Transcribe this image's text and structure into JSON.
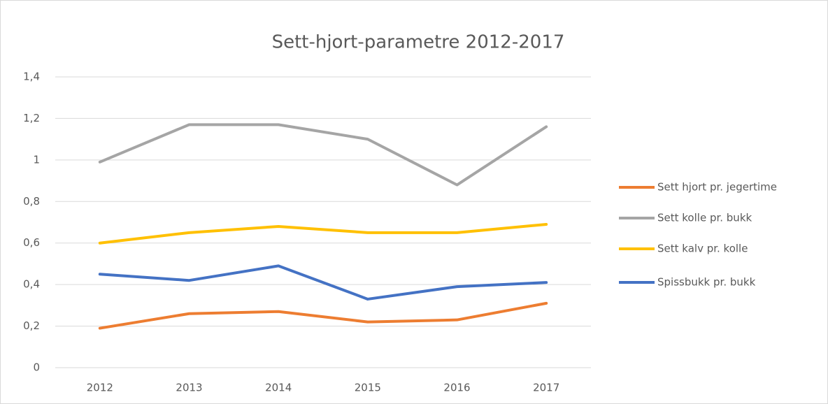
{
  "chart_data": {
    "type": "line",
    "title": "Sett-hjort-parametre 2012-2017",
    "categories": [
      "2012",
      "2013",
      "2014",
      "2015",
      "2016",
      "2017"
    ],
    "series": [
      {
        "name": "Sett hjort pr. jegertime",
        "color": "#ed7d31",
        "values": [
          0.19,
          0.26,
          0.27,
          0.22,
          0.23,
          0.31
        ]
      },
      {
        "name": "Sett kolle pr. bukk",
        "color": "#a5a5a5",
        "values": [
          0.99,
          1.17,
          1.17,
          1.1,
          0.88,
          1.16
        ]
      },
      {
        "name": "Sett kalv pr. kolle",
        "color": "#ffc000",
        "values": [
          0.6,
          0.65,
          0.68,
          0.65,
          0.65,
          0.69
        ]
      },
      {
        "name": "Spissbukk pr. bukk",
        "color": "#4472c4",
        "values": [
          0.45,
          0.42,
          0.49,
          0.33,
          0.39,
          0.41
        ]
      }
    ],
    "ylim": [
      0,
      1.4
    ],
    "yticks": [
      0,
      {
        "value": 0.2,
        "label": "0,2"
      },
      {
        "value": 0.4,
        "label": "0,4"
      },
      {
        "value": 0.6,
        "label": "0,6"
      },
      {
        "value": 0.8,
        "label": "0,8"
      },
      1,
      {
        "value": 1.2,
        "label": "1,2"
      },
      {
        "value": 1.4,
        "label": "1,4"
      }
    ],
    "grid": true,
    "legend": "right"
  }
}
